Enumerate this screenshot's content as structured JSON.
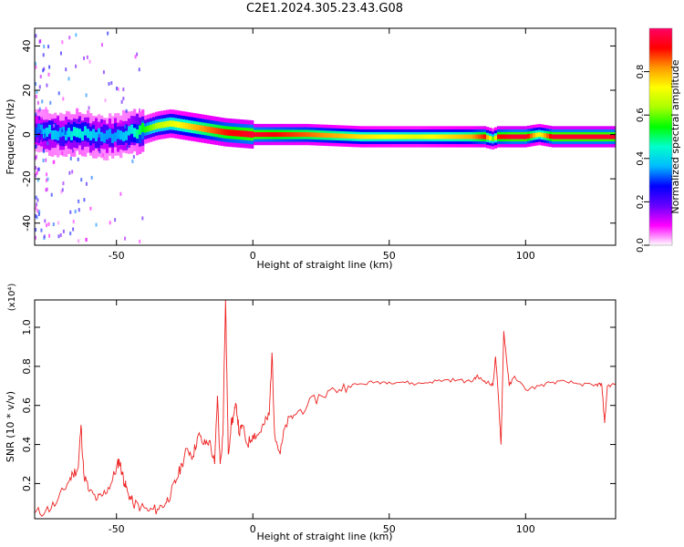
{
  "figure_title": "C2E1.2024.305.23.43.G08",
  "chart_data": [
    {
      "type": "heatmap",
      "title": "C2E1.2024.305.23.43.G08",
      "xlabel": "Height of straight line (km)",
      "ylabel": "Frequency (Hz)",
      "xlim": [
        -80,
        133
      ],
      "ylim": [
        -50,
        48
      ],
      "xticks": [
        -50,
        0,
        50,
        100
      ],
      "yticks": [
        -40,
        -20,
        0,
        20,
        40
      ],
      "colorbar": {
        "label": "Normalized spectral amplitude",
        "range": [
          0,
          1
        ],
        "ticks": [
          "0.0",
          "0.2",
          "0.4",
          "0.6",
          "0.8"
        ],
        "colors": [
          "#ffffff",
          "#ff00ff",
          "#6600ff",
          "#0000ff",
          "#00bbff",
          "#00ffcc",
          "#00ff00",
          "#aaff00",
          "#ffff00",
          "#ff9900",
          "#ff0000",
          "#ff0066"
        ]
      },
      "ridge": {
        "x": [
          -80,
          -75,
          -70,
          -65,
          -60,
          -55,
          -50,
          -45,
          -40,
          -35,
          -30,
          -25,
          -20,
          -15,
          -10,
          -5,
          0,
          10,
          20,
          40,
          60,
          80,
          85,
          88,
          90,
          95,
          100,
          105,
          110,
          120,
          133
        ],
        "freq": [
          2,
          1,
          0,
          1,
          0,
          -1,
          0,
          1,
          2,
          4,
          5,
          4,
          3,
          2,
          1,
          0.5,
          0,
          0,
          0,
          -1,
          -1,
          -1,
          -1,
          -2,
          -1,
          -1,
          -1,
          0,
          -1,
          -1,
          -1
        ],
        "amplitude": [
          0.3,
          0.4,
          0.35,
          0.45,
          0.4,
          0.35,
          0.35,
          0.4,
          0.55,
          0.65,
          0.7,
          0.75,
          0.8,
          0.85,
          0.9,
          0.92,
          0.95,
          0.9,
          0.85,
          0.75,
          0.7,
          0.8,
          0.9,
          0.6,
          0.9,
          0.95,
          0.95,
          0.7,
          0.95,
          0.95,
          0.95
        ]
      }
    },
    {
      "type": "line",
      "xlabel": "Height of straight line (km)",
      "ylabel": "SNR (10 * v/v)",
      "scale_label": "(x10⁴)",
      "xlim": [
        -80,
        133
      ],
      "ylim": [
        0.02,
        1.14
      ],
      "xticks": [
        -50,
        0,
        50,
        100
      ],
      "yticks": [
        "0.2",
        "0.4",
        "0.6",
        "0.8",
        "1.0"
      ],
      "yticks_values": [
        0.2,
        0.4,
        0.6,
        0.8,
        1.0
      ],
      "color": "#ee2222",
      "series": [
        {
          "x": [
            -80,
            -76,
            -72,
            -68,
            -66,
            -64,
            -63,
            -62,
            -60,
            -57,
            -55,
            -52,
            -50,
            -49,
            -48,
            -47,
            -46,
            -44,
            -41,
            -38,
            -35,
            -32,
            -30,
            -28,
            -26,
            -24,
            -22,
            -20,
            -18,
            -16,
            -14,
            -13,
            -12,
            -11,
            -10,
            -9,
            -8,
            -7,
            -6,
            -5,
            -4,
            -2,
            0,
            2,
            4,
            6,
            7,
            8,
            10,
            12,
            15,
            20,
            25,
            30,
            35,
            40,
            45,
            50,
            55,
            60,
            65,
            70,
            75,
            80,
            82,
            84,
            86,
            88,
            89,
            90,
            91,
            92,
            94,
            96,
            100,
            105,
            110,
            115,
            120,
            125,
            127,
            128,
            129,
            130,
            133
          ],
          "y": [
            0.05,
            0.06,
            0.1,
            0.2,
            0.25,
            0.28,
            0.5,
            0.25,
            0.16,
            0.12,
            0.14,
            0.2,
            0.28,
            0.32,
            0.26,
            0.2,
            0.16,
            0.1,
            0.08,
            0.06,
            0.07,
            0.1,
            0.15,
            0.22,
            0.3,
            0.38,
            0.34,
            0.45,
            0.4,
            0.42,
            0.3,
            0.65,
            0.3,
            0.45,
            1.14,
            0.35,
            0.5,
            0.55,
            0.6,
            0.45,
            0.5,
            0.4,
            0.45,
            0.45,
            0.5,
            0.55,
            0.87,
            0.45,
            0.35,
            0.5,
            0.55,
            0.6,
            0.65,
            0.68,
            0.7,
            0.71,
            0.72,
            0.72,
            0.72,
            0.71,
            0.72,
            0.73,
            0.73,
            0.72,
            0.75,
            0.73,
            0.72,
            0.7,
            0.85,
            0.65,
            0.4,
            0.98,
            0.7,
            0.75,
            0.68,
            0.7,
            0.72,
            0.72,
            0.71,
            0.7,
            0.71,
            0.7,
            0.51,
            0.7,
            0.71
          ]
        }
      ]
    }
  ]
}
